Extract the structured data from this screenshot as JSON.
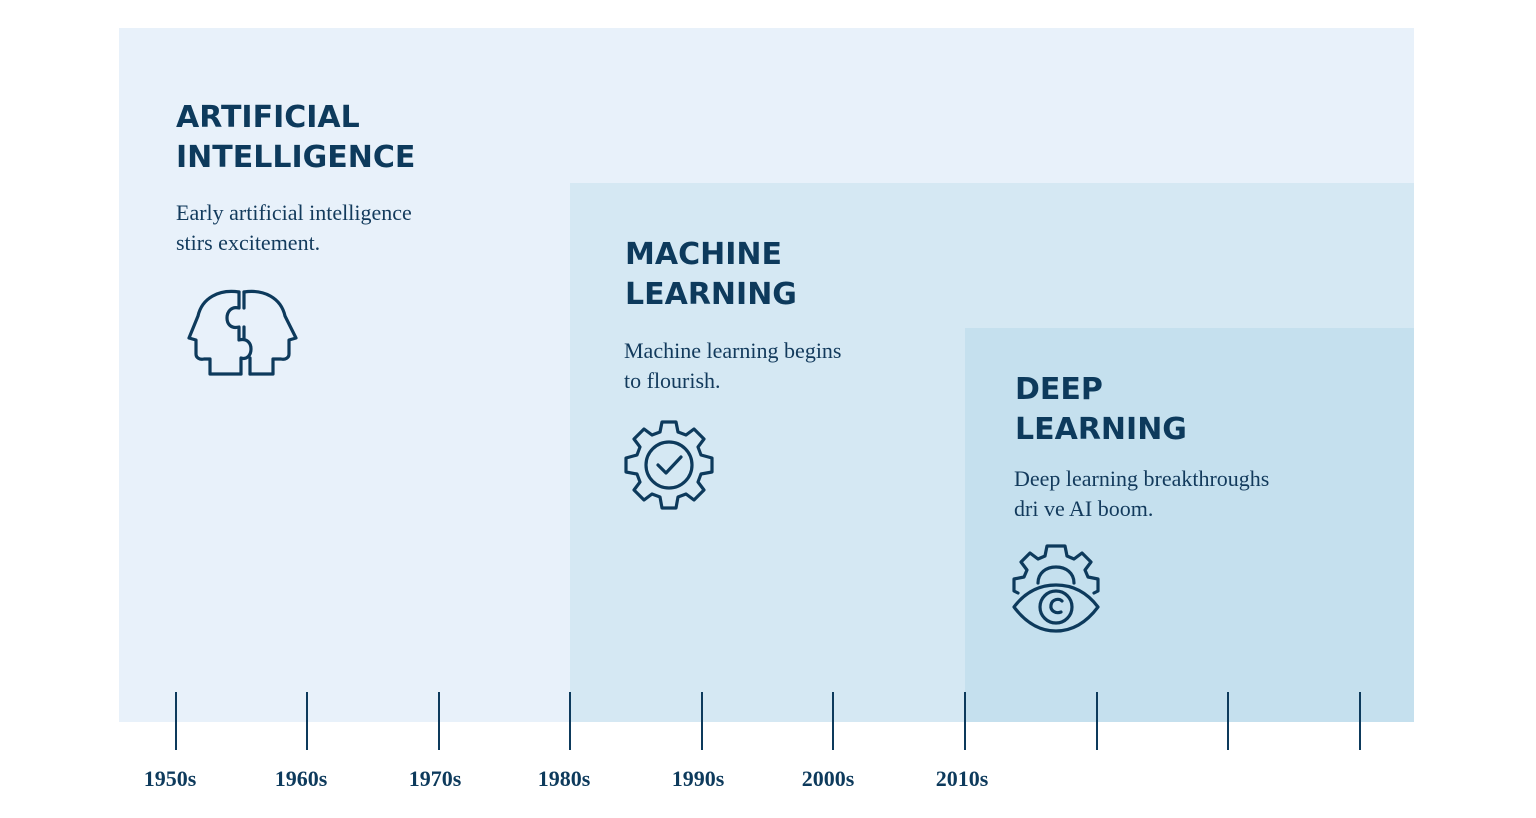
{
  "eras": {
    "ai": {
      "title_line1": "ARTIFICIAL",
      "title_line2": "INTELLIGENCE",
      "desc_line1": "Early artificial intelligence",
      "desc_line2": "stirs  excitement.",
      "icon": "head-puzzle-icon"
    },
    "ml": {
      "title_line1": "MACHINE",
      "title_line2": "LEARNING",
      "desc_line1": "Machine learning begins",
      "desc_line2": "to flourish.",
      "icon": "gear-check-icon"
    },
    "dl": {
      "title_line1": "DEEP",
      "title_line2": "LEARNING",
      "desc_line1": "Deep learning breakthroughs",
      "desc_line2": "dri ve AI boom.",
      "icon": "gear-eye-icon"
    }
  },
  "timeline": {
    "labels": [
      "1950s",
      "1960s",
      "1970s",
      "1980s",
      "1990s",
      "2000s",
      "2010s"
    ]
  },
  "colors": {
    "ai_panel": "#e8f1fa",
    "ml_panel": "#d5e8f3",
    "dl_panel": "#c5e0ee",
    "ink": "#0d3a5c"
  }
}
